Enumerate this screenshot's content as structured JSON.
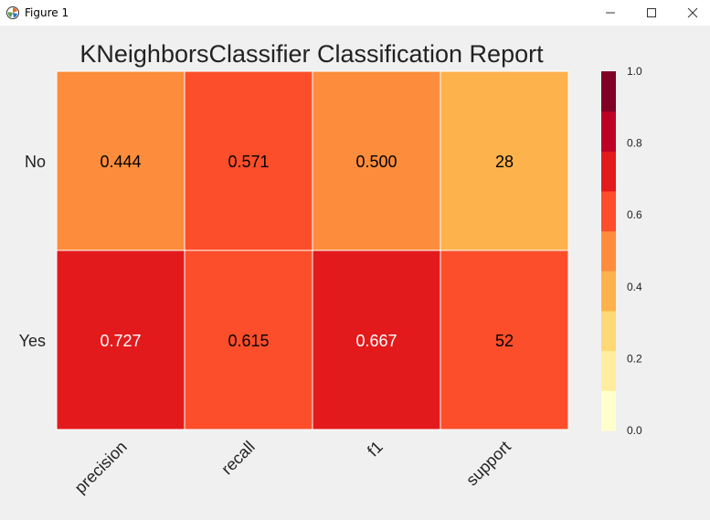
{
  "window": {
    "title": "Figure 1",
    "icons": {
      "app": "matplotlib-icon",
      "minimize": "minimize-icon",
      "maximize": "maximize-icon",
      "close": "close-icon"
    }
  },
  "chart_data": {
    "type": "heatmap",
    "title": "KNeighborsClassifier Classification Report",
    "rows": [
      "No",
      "Yes"
    ],
    "columns": [
      "precision",
      "recall",
      "f1",
      "support"
    ],
    "values": [
      [
        0.444,
        0.571,
        0.5,
        28
      ],
      [
        0.727,
        0.615,
        0.667,
        52
      ]
    ],
    "cell_labels": [
      [
        "0.444",
        "0.571",
        "0.500",
        "28"
      ],
      [
        "0.727",
        "0.615",
        "0.667",
        "52"
      ]
    ],
    "cell_colors": [
      [
        "#fd8d3c",
        "#fc4e2a",
        "#fd8d3c",
        "#feb24c"
      ],
      [
        "#e31a1c",
        "#fc4e2a",
        "#e31a1c",
        "#fc4e2a"
      ]
    ],
    "colorbar": {
      "range": [
        0.0,
        1.0
      ],
      "ticks": [
        "0.0",
        "0.2",
        "0.4",
        "0.6",
        "0.8",
        "1.0"
      ],
      "colors": [
        "#ffffcc",
        "#ffeda0",
        "#fed976",
        "#feb24c",
        "#fd8d3c",
        "#fc4e2a",
        "#e31a1c",
        "#bd0026",
        "#800026"
      ]
    }
  }
}
